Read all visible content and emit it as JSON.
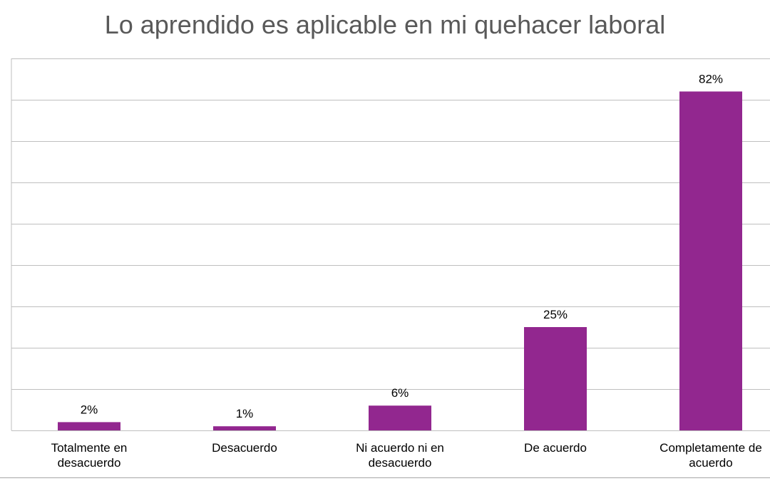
{
  "colors": {
    "bar": "#92278F",
    "grid": "#BFBFBF",
    "title": "#595959",
    "bottom_rule": "#A6A6A6"
  },
  "chart_data": {
    "type": "bar",
    "title": "Lo aprendido es aplicable en mi quehacer laboral",
    "xlabel": "",
    "ylabel": "",
    "categories": [
      [
        "Totalmente en",
        "desacuerdo"
      ],
      [
        "Desacuerdo"
      ],
      [
        "Ni acuerdo ni en",
        "desacuerdo"
      ],
      [
        "De acuerdo"
      ],
      [
        "Completamente de",
        "acuerdo"
      ]
    ],
    "values": [
      2,
      1,
      6,
      25,
      82
    ],
    "data_labels": [
      "2%",
      "1%",
      "6%",
      "25%",
      "82%"
    ],
    "ylim": [
      0,
      90
    ],
    "y_grid_step": 10,
    "grid": true,
    "legend": "none"
  }
}
